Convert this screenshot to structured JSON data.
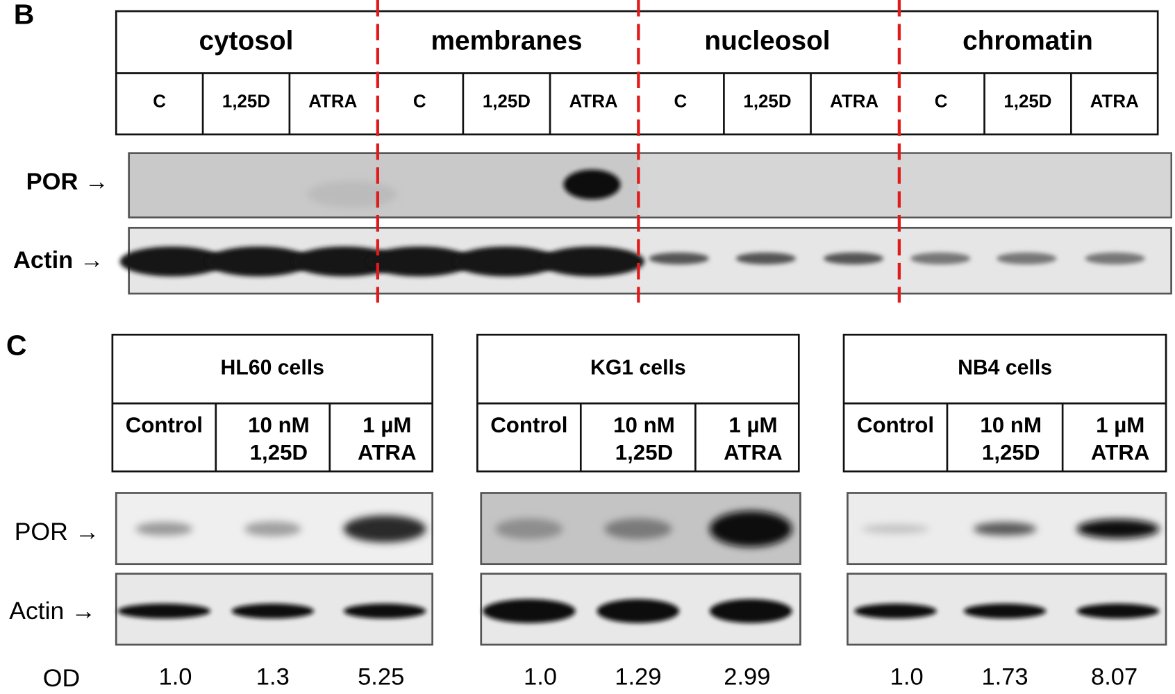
{
  "panel_b": {
    "label": "B",
    "fractions": [
      {
        "name": "cytosol",
        "lanes": [
          "C",
          "1,25D",
          "ATRA"
        ]
      },
      {
        "name": "membranes",
        "lanes": [
          "C",
          "1,25D",
          "ATRA"
        ]
      },
      {
        "name": "nucleosol",
        "lanes": [
          "C",
          "1,25D",
          "ATRA"
        ]
      },
      {
        "name": "chromatin",
        "lanes": [
          "C",
          "1,25D",
          "ATRA"
        ]
      }
    ],
    "rows": [
      "POR →",
      "Actin →"
    ]
  },
  "panel_c": {
    "label": "C",
    "rows": [
      "POR →",
      "Actin →"
    ],
    "od_label": "OD",
    "groups": [
      {
        "title": "HL60 cells",
        "lanes": [
          [
            "Control"
          ],
          [
            "10 nM",
            "1,25D"
          ],
          [
            "1 µM",
            "ATRA"
          ]
        ],
        "od": [
          "1.0",
          "1.3",
          "5.25"
        ]
      },
      {
        "title": "KG1 cells",
        "lanes": [
          [
            "Control"
          ],
          [
            "10 nM",
            "1,25D"
          ],
          [
            "1 µM",
            "ATRA"
          ]
        ],
        "od": [
          "1.0",
          "1.29",
          "2.99"
        ]
      },
      {
        "title": "NB4 cells",
        "lanes": [
          [
            "Control"
          ],
          [
            "10 nM",
            "1,25D"
          ],
          [
            "1 µM",
            "ATRA"
          ]
        ],
        "od": [
          "1.0",
          "1.73",
          "8.07"
        ]
      }
    ]
  }
}
